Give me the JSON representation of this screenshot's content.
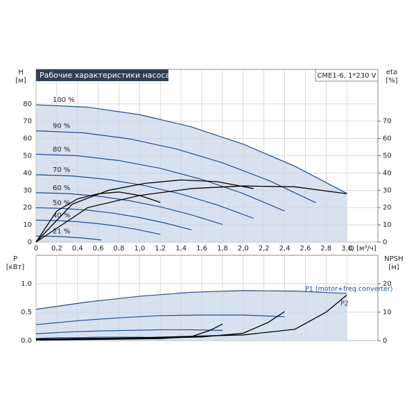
{
  "header": {
    "title": "Рабочие характеристики насоса",
    "model": "CME1-6, 1*230 V"
  },
  "chart_data": [
    {
      "type": "line",
      "x_label": "Q [м³/ч]",
      "y_label": "H",
      "y_unit": "[м]",
      "y2_label": "eta",
      "y2_unit": "[%]",
      "grid": true,
      "xlim": [
        0,
        3.3
      ],
      "xticks": [
        0,
        {
          "value": 0.2,
          "label": "0,2"
        },
        {
          "value": 0.4,
          "label": "0,4"
        },
        {
          "value": 0.6,
          "label": "0,6"
        },
        {
          "value": 0.8,
          "label": "0,8"
        },
        {
          "value": 1,
          "label": "1,0"
        },
        {
          "value": 1.2,
          "label": "1,2"
        },
        {
          "value": 1.4,
          "label": "1,4"
        },
        {
          "value": 1.6,
          "label": "1,6"
        },
        {
          "value": 1.8,
          "label": "1,8"
        },
        {
          "value": 2,
          "label": "2,0"
        },
        {
          "value": 2.2,
          "label": "2,2"
        },
        {
          "value": 2.4,
          "label": "2,4"
        },
        {
          "value": 2.6,
          "label": "2,6"
        },
        {
          "value": 2.8,
          "label": "2,8"
        },
        {
          "value": 3,
          "label": "3,0"
        }
      ],
      "ylim": [
        0,
        100
      ],
      "yticks": [
        0,
        10,
        20,
        30,
        40,
        50,
        60,
        70,
        80
      ],
      "y2lim": [
        0,
        100
      ],
      "y2ticks": [
        0,
        10,
        20,
        30,
        40,
        50,
        60,
        70
      ],
      "series": [
        {
          "name": "100 %",
          "color": "#1f4e8c",
          "x": [
            0,
            0.5,
            1.0,
            1.5,
            2.0,
            2.5,
            3.0
          ],
          "values": [
            79.5,
            78.1,
            73.8,
            66.7,
            56.7,
            43.9,
            28.2
          ]
        },
        {
          "name": "90 %",
          "color": "#1f4e8c",
          "x": [
            0,
            0.45,
            0.9,
            1.35,
            1.8,
            2.25,
            2.7
          ],
          "values": [
            64.4,
            63.3,
            59.8,
            54.0,
            45.9,
            35.6,
            22.8
          ]
        },
        {
          "name": "80 %",
          "color": "#1f4e8c",
          "x": [
            0,
            0.4,
            0.8,
            1.2,
            1.6,
            2.0,
            2.4
          ],
          "values": [
            50.9,
            50.0,
            47.2,
            42.7,
            36.3,
            28.1,
            18.0
          ]
        },
        {
          "name": "70 %",
          "color": "#1f4e8c",
          "x": [
            0,
            0.35,
            0.7,
            1.05,
            1.4,
            1.75,
            2.1
          ],
          "values": [
            39.0,
            38.3,
            36.2,
            32.7,
            27.8,
            21.5,
            13.8
          ]
        },
        {
          "name": "60 %",
          "color": "#1f4e8c",
          "x": [
            0,
            0.3,
            0.6,
            0.9,
            1.2,
            1.5,
            1.8
          ],
          "values": [
            28.6,
            28.1,
            26.6,
            24.0,
            20.4,
            15.8,
            10.2
          ]
        },
        {
          "name": "50 %",
          "color": "#1f4e8c",
          "x": [
            0,
            0.25,
            0.5,
            0.75,
            1.0,
            1.25,
            1.5
          ],
          "values": [
            19.9,
            19.5,
            18.5,
            16.7,
            14.2,
            11.0,
            7.1
          ]
        },
        {
          "name": "40 %",
          "color": "#1f4e8c",
          "x": [
            0,
            0.2,
            0.4,
            0.6,
            0.8,
            1.0,
            1.2
          ],
          "values": [
            12.7,
            12.5,
            11.8,
            10.7,
            9.1,
            7.0,
            4.5
          ]
        },
        {
          "name": "21 %",
          "color": "#1f4e8c",
          "x": [
            0,
            0.105,
            0.21,
            0.315,
            0.42,
            0.525,
            0.63
          ],
          "values": [
            3.5,
            3.4,
            3.3,
            2.9,
            2.5,
            1.9,
            1.2
          ]
        },
        {
          "axis": "y2",
          "color": "#000000",
          "x": [
            0,
            0.5,
            1.0,
            1.5,
            2.0,
            2.5,
            3.0
          ],
          "values": [
            0,
            20,
            27,
            31,
            32.5,
            32,
            28
          ]
        },
        {
          "axis": "y2",
          "color": "#000000",
          "x": [
            0,
            0.35,
            0.7,
            1.05,
            1.4,
            1.75,
            2.1
          ],
          "values": [
            0,
            22,
            30,
            34,
            36,
            35,
            31
          ]
        },
        {
          "axis": "y2",
          "color": "#000000",
          "x": [
            0,
            0.2,
            0.4,
            0.6,
            0.8,
            1.0,
            1.2
          ],
          "values": [
            0,
            18,
            25,
            28,
            29,
            27,
            23
          ]
        }
      ]
    },
    {
      "type": "line",
      "y_label": "P",
      "y_unit": "[кВт]",
      "y2_label": "NPSH",
      "y2_unit": "[м]",
      "grid": true,
      "xlim": [
        0,
        3.3
      ],
      "xticks": [
        0,
        0.2,
        0.4,
        0.6,
        0.8,
        1,
        1.2,
        1.4,
        1.6,
        1.8,
        2,
        2.2,
        2.4,
        2.6,
        2.8,
        3
      ],
      "ylim": [
        0,
        1.5
      ],
      "yticks": [
        {
          "value": 0,
          "label": "0.0"
        },
        0.5,
        {
          "value": 1,
          "label": "1.0"
        }
      ],
      "y2lim": [
        0,
        30
      ],
      "y2ticks": [
        0,
        10,
        20
      ],
      "annotations": [
        "P1 (motor+freq.converter)",
        "P2"
      ],
      "series": [
        {
          "color": "#1f4e8c",
          "x": [
            0,
            0.5,
            1.0,
            1.5,
            2.0,
            2.5,
            3.0
          ],
          "values": [
            0.55,
            0.68,
            0.78,
            0.85,
            0.88,
            0.87,
            0.83
          ]
        },
        {
          "color": "#1f4e8c",
          "x": [
            0,
            0.4,
            0.8,
            1.2,
            1.6,
            2.0,
            2.4
          ],
          "values": [
            0.28,
            0.35,
            0.4,
            0.44,
            0.45,
            0.45,
            0.42
          ]
        },
        {
          "color": "#1f4e8c",
          "x": [
            0,
            0.3,
            0.6,
            0.9,
            1.2,
            1.5,
            1.8
          ],
          "values": [
            0.12,
            0.15,
            0.17,
            0.18,
            0.19,
            0.19,
            0.18
          ]
        },
        {
          "color": "#1f4e8c",
          "x": [
            0,
            0.2,
            0.4,
            0.6,
            0.8,
            1.0,
            1.2
          ],
          "values": [
            0.04,
            0.05,
            0.05,
            0.06,
            0.06,
            0.06,
            0.05
          ]
        },
        {
          "axis": "y2",
          "color": "#000000",
          "x": [
            0,
            1.0,
            2.0,
            2.5,
            2.8,
            3.0
          ],
          "values": [
            0.5,
            1,
            2,
            4,
            10,
            16
          ]
        },
        {
          "axis": "y2",
          "color": "#000000",
          "x": [
            0,
            0.8,
            1.6,
            2.0,
            2.24,
            2.4
          ],
          "values": [
            0.3,
            0.6,
            1.3,
            2.6,
            6.4,
            10.2
          ]
        },
        {
          "axis": "y2",
          "color": "#000000",
          "x": [
            0,
            0.6,
            1.2,
            1.5,
            1.68,
            1.8
          ],
          "values": [
            0.2,
            0.4,
            0.7,
            1.4,
            3.6,
            5.8
          ]
        }
      ]
    }
  ]
}
